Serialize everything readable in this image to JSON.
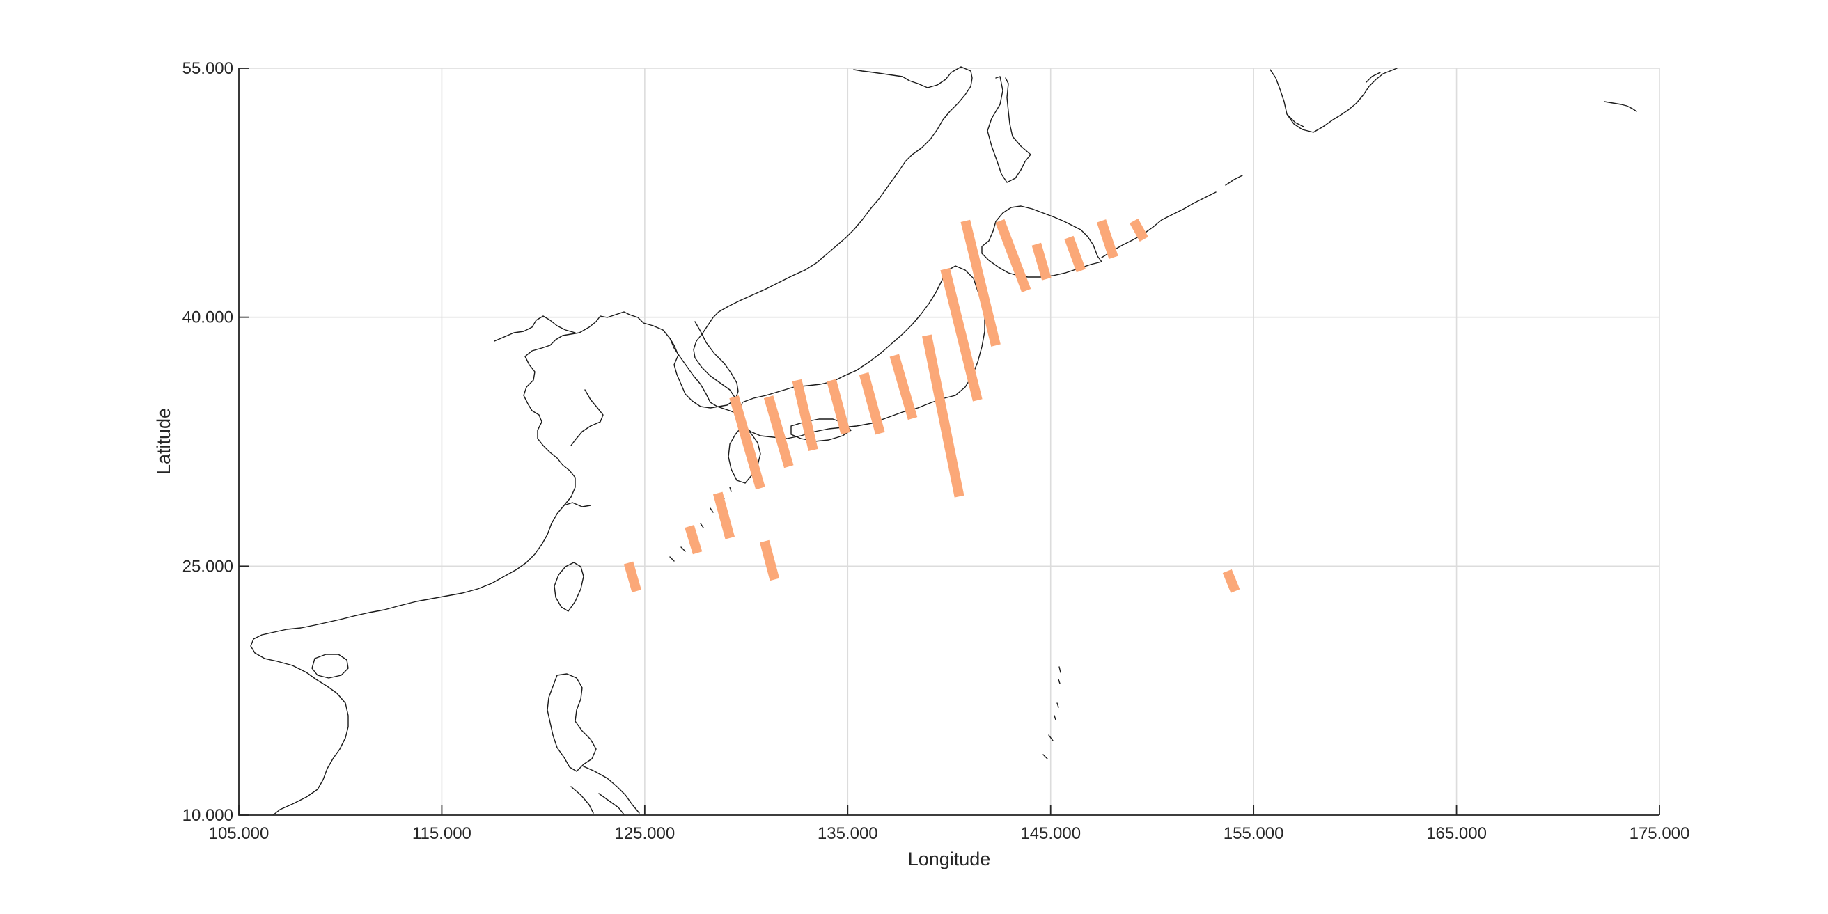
{
  "map": {
    "xlabel": "Longitude",
    "ylabel": "Latitude",
    "xlim": [
      105,
      175
    ],
    "ylim": [
      10,
      55
    ],
    "x_ticks": [
      "105.000",
      "115.000",
      "125.000",
      "135.000",
      "145.000",
      "155.000",
      "165.000",
      "175.000"
    ],
    "y_ticks": [
      "10.000",
      "25.000",
      "40.000",
      "55.000"
    ],
    "grid": true,
    "swath_color": "#fba878",
    "coast_color": "#1a1a1a"
  },
  "chart_data": {
    "type": "map",
    "swaths": [
      {
        "lon1": 129.4,
        "lat1": 35.2,
        "lon2": 130.7,
        "lat2": 29.7
      },
      {
        "lon1": 131.1,
        "lat1": 35.2,
        "lon2": 132.1,
        "lat2": 31.0
      },
      {
        "lon1": 132.5,
        "lat1": 36.2,
        "lon2": 133.3,
        "lat2": 32.0
      },
      {
        "lon1": 134.2,
        "lat1": 36.2,
        "lon2": 134.9,
        "lat2": 33.0
      },
      {
        "lon1": 135.8,
        "lat1": 36.6,
        "lon2": 136.6,
        "lat2": 33.0
      },
      {
        "lon1": 137.3,
        "lat1": 37.7,
        "lon2": 138.2,
        "lat2": 33.9
      },
      {
        "lon1": 138.9,
        "lat1": 38.9,
        "lon2": 140.5,
        "lat2": 29.2
      },
      {
        "lon1": 139.8,
        "lat1": 42.9,
        "lon2": 141.4,
        "lat2": 35.0
      },
      {
        "lon1": 140.8,
        "lat1": 45.8,
        "lon2": 142.3,
        "lat2": 38.3
      },
      {
        "lon1": 142.5,
        "lat1": 45.8,
        "lon2": 143.8,
        "lat2": 41.6
      },
      {
        "lon1": 144.3,
        "lat1": 44.4,
        "lon2": 144.8,
        "lat2": 42.3
      },
      {
        "lon1": 145.9,
        "lat1": 44.8,
        "lon2": 146.5,
        "lat2": 42.8
      },
      {
        "lon1": 147.5,
        "lat1": 45.8,
        "lon2": 148.1,
        "lat2": 43.6
      },
      {
        "lon1": 149.1,
        "lat1": 45.8,
        "lon2": 149.6,
        "lat2": 44.7
      },
      {
        "lon1": 127.2,
        "lat1": 27.4,
        "lon2": 127.6,
        "lat2": 25.8
      },
      {
        "lon1": 128.6,
        "lat1": 29.4,
        "lon2": 129.2,
        "lat2": 26.7
      },
      {
        "lon1": 130.9,
        "lat1": 26.5,
        "lon2": 131.4,
        "lat2": 24.2
      },
      {
        "lon1": 124.2,
        "lat1": 25.2,
        "lon2": 124.6,
        "lat2": 23.5
      },
      {
        "lon1": 153.7,
        "lat1": 24.7,
        "lon2": 154.1,
        "lat2": 23.5
      }
    ]
  }
}
